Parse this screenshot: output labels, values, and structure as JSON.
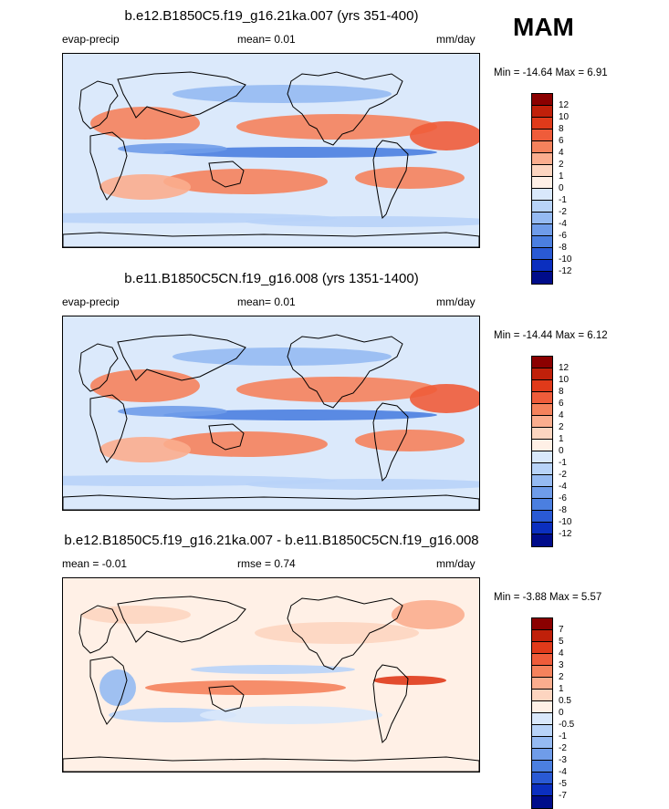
{
  "season": "MAM",
  "chart_data": [
    {
      "type": "heatmap",
      "title": "b.e12.B1850C5.f19_g16.21ka.007 (yrs 351-400)",
      "left_label": "evap-precip",
      "center_label": "mean=   0.01",
      "right_label": "mm/day",
      "stats": "Min = -14.64 Max =    6.91",
      "levels": [
        "12",
        "10",
        "8",
        "6",
        "4",
        "2",
        "1",
        "0",
        "-1",
        "-2",
        "-4",
        "-6",
        "-8",
        "-10",
        "-12"
      ],
      "colors": [
        "#8b0000",
        "#c0200a",
        "#e03a1a",
        "#ef5c3a",
        "#f5825c",
        "#fbad8e",
        "#fdd5c0",
        "#fff0e6",
        "#d9e8fb",
        "#b8d3f8",
        "#95baf2",
        "#6f9ce9",
        "#4b7fe0",
        "#2a5ad4",
        "#0b2fbf",
        "#000c8a"
      ],
      "value_range": [
        -14.64,
        6.91
      ]
    },
    {
      "type": "heatmap",
      "title": "b.e11.B1850C5CN.f19_g16.008 (yrs 1351-1400)",
      "left_label": "evap-precip",
      "center_label": "mean=   0.01",
      "right_label": "mm/day",
      "stats": "Min = -14.44 Max =    6.12",
      "levels": [
        "12",
        "10",
        "8",
        "6",
        "4",
        "2",
        "1",
        "0",
        "-1",
        "-2",
        "-4",
        "-6",
        "-8",
        "-10",
        "-12"
      ],
      "colors": [
        "#8b0000",
        "#c0200a",
        "#e03a1a",
        "#ef5c3a",
        "#f5825c",
        "#fbad8e",
        "#fdd5c0",
        "#fff0e6",
        "#d9e8fb",
        "#b8d3f8",
        "#95baf2",
        "#6f9ce9",
        "#4b7fe0",
        "#2a5ad4",
        "#0b2fbf",
        "#000c8a"
      ],
      "value_range": [
        -14.44,
        6.12
      ]
    },
    {
      "type": "heatmap",
      "title": "b.e12.B1850C5.f19_g16.21ka.007 - b.e11.B1850C5CN.f19_g16.008",
      "left_label": "mean =  -0.01",
      "center_label": "rmse =   0.74",
      "right_label": "mm/day",
      "stats": "Min =  -3.88 Max =    5.57",
      "levels": [
        "7",
        "5",
        "4",
        "3",
        "2",
        "1",
        "0.5",
        "0",
        "-0.5",
        "-1",
        "-2",
        "-3",
        "-4",
        "-5",
        "-7"
      ],
      "colors": [
        "#8b0000",
        "#c0200a",
        "#e03a1a",
        "#ef5c3a",
        "#f5825c",
        "#fbad8e",
        "#fdd5c0",
        "#fff0e6",
        "#d9e8fb",
        "#b8d3f8",
        "#95baf2",
        "#6f9ce9",
        "#4b7fe0",
        "#2a5ad4",
        "#0b2fbf",
        "#000c8a"
      ],
      "value_range": [
        -3.88,
        5.57
      ]
    }
  ]
}
